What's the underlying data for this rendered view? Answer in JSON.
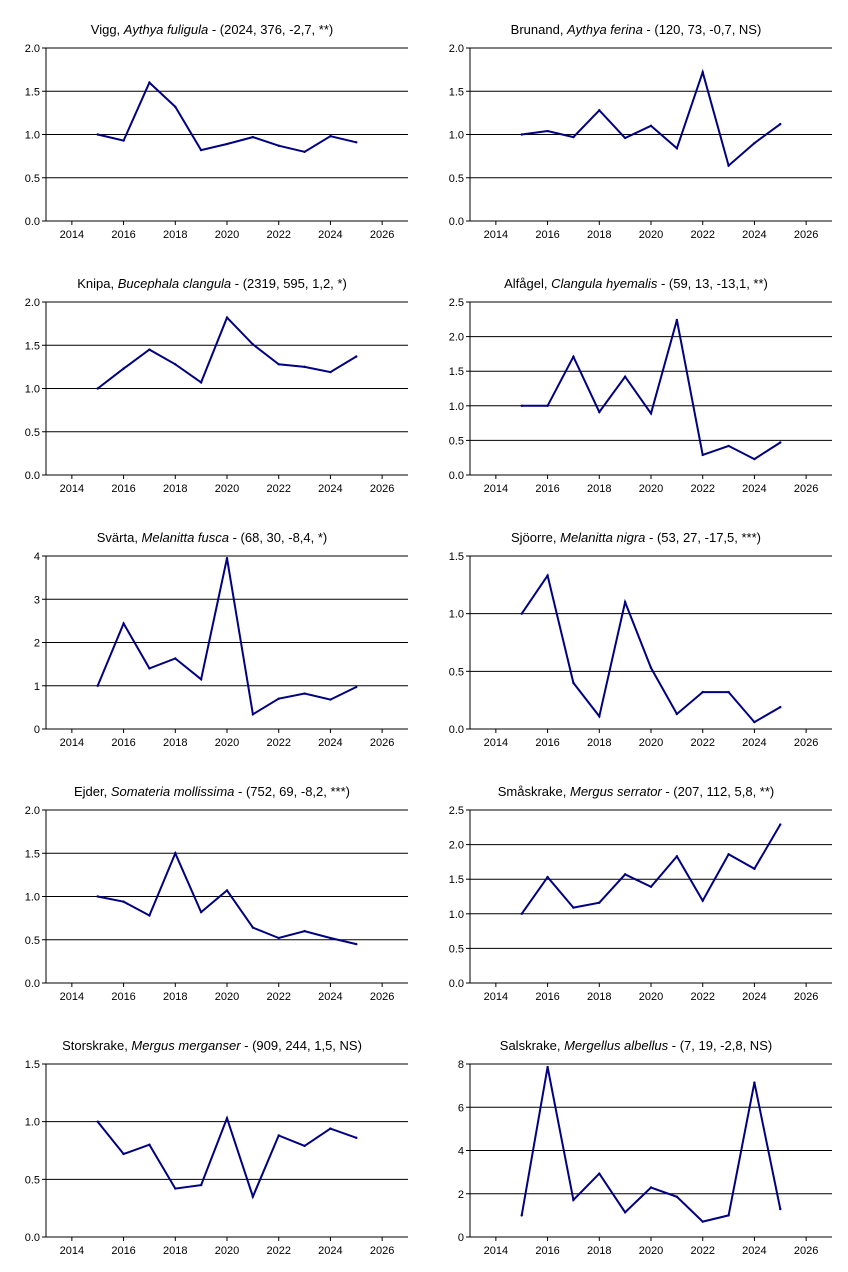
{
  "style": {
    "line_color": "#000080",
    "axis_color": "#000000",
    "grid_color": "#000000"
  },
  "chart_data": [
    {
      "type": "line",
      "title": {
        "common": "Vigg, ",
        "latin": "Aythya fuligula",
        "stats": " - (2024, 376, -2,7, **)"
      },
      "x": [
        2015,
        2016,
        2017,
        2018,
        2019,
        2020,
        2021,
        2022,
        2023,
        2024,
        2025
      ],
      "values": [
        1.0,
        0.93,
        1.6,
        1.32,
        0.82,
        0.89,
        0.97,
        0.87,
        0.8,
        0.98,
        0.91
      ],
      "xlim": [
        2013,
        2027
      ],
      "ylim": [
        0,
        2.0
      ],
      "xticks": [
        2014,
        2016,
        2018,
        2020,
        2022,
        2024,
        2026
      ],
      "yticks": [
        0,
        0.5,
        1.0,
        1.5,
        2.0
      ],
      "xtick_labels": [
        "2014",
        "2016",
        "2018",
        "2020",
        "2022",
        "2024",
        "2026"
      ],
      "ytick_labels": [
        "0.0",
        "0.5",
        "1.0",
        "1.5",
        "2.0"
      ],
      "grid": "horizontal"
    },
    {
      "type": "line",
      "title": {
        "common": "Brunand, ",
        "latin": "Aythya ferina",
        "stats": " - (120, 73, -0,7, NS)"
      },
      "x": [
        2015,
        2016,
        2017,
        2018,
        2019,
        2020,
        2021,
        2022,
        2023,
        2024,
        2025
      ],
      "values": [
        1.0,
        1.04,
        0.97,
        1.28,
        0.96,
        1.1,
        0.84,
        1.72,
        0.64,
        0.9,
        1.12
      ],
      "xlim": [
        2013,
        2027
      ],
      "ylim": [
        0,
        2.0
      ],
      "xticks": [
        2014,
        2016,
        2018,
        2020,
        2022,
        2024,
        2026
      ],
      "yticks": [
        0,
        0.5,
        1.0,
        1.5,
        2.0
      ],
      "xtick_labels": [
        "2014",
        "2016",
        "2018",
        "2020",
        "2022",
        "2024",
        "2026"
      ],
      "ytick_labels": [
        "0.0",
        "0.5",
        "1.0",
        "1.5",
        "2.0"
      ],
      "grid": "horizontal"
    },
    {
      "type": "line",
      "title": {
        "common": "Knipa, ",
        "latin": "Bucephala clangula",
        "stats": " - (2319, 595, 1,2, *)"
      },
      "x": [
        2015,
        2016,
        2017,
        2018,
        2019,
        2020,
        2021,
        2022,
        2023,
        2024,
        2025
      ],
      "values": [
        1.0,
        1.23,
        1.45,
        1.28,
        1.07,
        1.82,
        1.51,
        1.28,
        1.25,
        1.19,
        1.37
      ],
      "xlim": [
        2013,
        2027
      ],
      "ylim": [
        0,
        2.0
      ],
      "xticks": [
        2014,
        2016,
        2018,
        2020,
        2022,
        2024,
        2026
      ],
      "yticks": [
        0,
        0.5,
        1.0,
        1.5,
        2.0
      ],
      "xtick_labels": [
        "2014",
        "2016",
        "2018",
        "2020",
        "2022",
        "2024",
        "2026"
      ],
      "ytick_labels": [
        "0.0",
        "0.5",
        "1.0",
        "1.5",
        "2.0"
      ],
      "grid": "horizontal"
    },
    {
      "type": "line",
      "title": {
        "common": "Alfågel, ",
        "latin": "Clangula hyemalis",
        "stats": " - (59, 13, -13,1, **)"
      },
      "x": [
        2015,
        2016,
        2017,
        2018,
        2019,
        2020,
        2021,
        2022,
        2023,
        2024,
        2025
      ],
      "values": [
        1.0,
        1.0,
        1.71,
        0.91,
        1.42,
        0.89,
        2.24,
        0.29,
        0.42,
        0.23,
        0.47
      ],
      "xlim": [
        2013,
        2027
      ],
      "ylim": [
        0,
        2.5
      ],
      "xticks": [
        2014,
        2016,
        2018,
        2020,
        2022,
        2024,
        2026
      ],
      "yticks": [
        0,
        0.5,
        1.0,
        1.5,
        2.0,
        2.5
      ],
      "xtick_labels": [
        "2014",
        "2016",
        "2018",
        "2020",
        "2022",
        "2024",
        "2026"
      ],
      "ytick_labels": [
        "0.0",
        "0.5",
        "1.0",
        "1.5",
        "2.0",
        "2.5"
      ],
      "grid": "horizontal"
    },
    {
      "type": "line",
      "title": {
        "common": "Svärta, ",
        "latin": "Melanitta fusca",
        "stats": " - (68, 30, -8,4, *)"
      },
      "x": [
        2015,
        2016,
        2017,
        2018,
        2019,
        2020,
        2021,
        2022,
        2023,
        2024,
        2025
      ],
      "values": [
        1.0,
        2.44,
        1.4,
        1.63,
        1.15,
        3.95,
        0.34,
        0.7,
        0.82,
        0.68,
        0.97
      ],
      "xlim": [
        2013,
        2027
      ],
      "ylim": [
        0,
        4
      ],
      "xticks": [
        2014,
        2016,
        2018,
        2020,
        2022,
        2024,
        2026
      ],
      "yticks": [
        0,
        1,
        2,
        3,
        4
      ],
      "xtick_labels": [
        "2014",
        "2016",
        "2018",
        "2020",
        "2022",
        "2024",
        "2026"
      ],
      "ytick_labels": [
        "0",
        "1",
        "2",
        "3",
        "4"
      ],
      "grid": "horizontal"
    },
    {
      "type": "line",
      "title": {
        "common": "Sjöorre, ",
        "latin": "Melanitta nigra",
        "stats": " - (53, 27, -17,5, ***)"
      },
      "x": [
        2015,
        2016,
        2017,
        2018,
        2019,
        2020,
        2021,
        2022,
        2023,
        2024,
        2025
      ],
      "values": [
        1.0,
        1.33,
        0.4,
        0.11,
        1.1,
        0.53,
        0.13,
        0.32,
        0.32,
        0.06,
        0.19
      ],
      "xlim": [
        2013,
        2027
      ],
      "ylim": [
        0,
        1.5
      ],
      "xticks": [
        2014,
        2016,
        2018,
        2020,
        2022,
        2024,
        2026
      ],
      "yticks": [
        0,
        0.5,
        1.0,
        1.5
      ],
      "xtick_labels": [
        "2014",
        "2016",
        "2018",
        "2020",
        "2022",
        "2024",
        "2026"
      ],
      "ytick_labels": [
        "0.0",
        "0.5",
        "1.0",
        "1.5"
      ],
      "grid": "horizontal"
    },
    {
      "type": "line",
      "title": {
        "common": "Ejder, ",
        "latin": "Somateria mollissima",
        "stats": " - (752, 69, -8,2, ***)"
      },
      "x": [
        2015,
        2016,
        2017,
        2018,
        2019,
        2020,
        2021,
        2022,
        2023,
        2024,
        2025
      ],
      "values": [
        1.0,
        0.94,
        0.78,
        1.5,
        0.82,
        1.07,
        0.64,
        0.52,
        0.6,
        0.52,
        0.45
      ],
      "xlim": [
        2013,
        2027
      ],
      "ylim": [
        0,
        2.0
      ],
      "xticks": [
        2014,
        2016,
        2018,
        2020,
        2022,
        2024,
        2026
      ],
      "yticks": [
        0,
        0.5,
        1.0,
        1.5,
        2.0
      ],
      "xtick_labels": [
        "2014",
        "2016",
        "2018",
        "2020",
        "2022",
        "2024",
        "2026"
      ],
      "ytick_labels": [
        "0.0",
        "0.5",
        "1.0",
        "1.5",
        "2.0"
      ],
      "grid": "horizontal"
    },
    {
      "type": "line",
      "title": {
        "common": "Småskrake, ",
        "latin": "Mergus serrator",
        "stats": " - (207, 112, 5,8, **)"
      },
      "x": [
        2015,
        2016,
        2017,
        2018,
        2019,
        2020,
        2021,
        2022,
        2023,
        2024,
        2025
      ],
      "values": [
        1.0,
        1.53,
        1.09,
        1.16,
        1.57,
        1.39,
        1.83,
        1.19,
        1.86,
        1.65,
        2.29
      ],
      "xlim": [
        2013,
        2027
      ],
      "ylim": [
        0,
        2.5
      ],
      "xticks": [
        2014,
        2016,
        2018,
        2020,
        2022,
        2024,
        2026
      ],
      "yticks": [
        0,
        0.5,
        1.0,
        1.5,
        2.0,
        2.5
      ],
      "xtick_labels": [
        "2014",
        "2016",
        "2018",
        "2020",
        "2022",
        "2024",
        "2026"
      ],
      "ytick_labels": [
        "0.0",
        "0.5",
        "1.0",
        "1.5",
        "2.0",
        "2.5"
      ],
      "grid": "horizontal"
    },
    {
      "type": "line",
      "title": {
        "common": "Storskrake, ",
        "latin": "Mergus merganser",
        "stats": " - (909, 244, 1,5, NS)"
      },
      "x": [
        2015,
        2016,
        2017,
        2018,
        2019,
        2020,
        2021,
        2022,
        2023,
        2024,
        2025
      ],
      "values": [
        1.0,
        0.72,
        0.8,
        0.42,
        0.45,
        1.03,
        0.35,
        0.88,
        0.79,
        0.94,
        0.86
      ],
      "xlim": [
        2013,
        2027
      ],
      "ylim": [
        0,
        1.5
      ],
      "xticks": [
        2014,
        2016,
        2018,
        2020,
        2022,
        2024,
        2026
      ],
      "yticks": [
        0,
        0.5,
        1.0,
        1.5
      ],
      "xtick_labels": [
        "2014",
        "2016",
        "2018",
        "2020",
        "2022",
        "2024",
        "2026"
      ],
      "ytick_labels": [
        "0.0",
        "0.5",
        "1.0",
        "1.5"
      ],
      "grid": "horizontal"
    },
    {
      "type": "line",
      "title": {
        "common": "Salskrake, ",
        "latin": "Mergellus albellus",
        "stats": " - (7, 19, -2,8, NS)"
      },
      "x": [
        2015,
        2016,
        2017,
        2018,
        2019,
        2020,
        2021,
        2022,
        2023,
        2024,
        2025
      ],
      "values": [
        1.0,
        7.86,
        1.71,
        2.93,
        1.14,
        2.29,
        1.86,
        0.71,
        1.0,
        7.14,
        1.29
      ],
      "xlim": [
        2013,
        2027
      ],
      "ylim": [
        0,
        8
      ],
      "xticks": [
        2014,
        2016,
        2018,
        2020,
        2022,
        2024,
        2026
      ],
      "yticks": [
        0,
        2,
        4,
        6,
        8
      ],
      "xtick_labels": [
        "2014",
        "2016",
        "2018",
        "2020",
        "2022",
        "2024",
        "2026"
      ],
      "ytick_labels": [
        "0",
        "2",
        "4",
        "6",
        "8"
      ],
      "grid": "horizontal"
    }
  ]
}
